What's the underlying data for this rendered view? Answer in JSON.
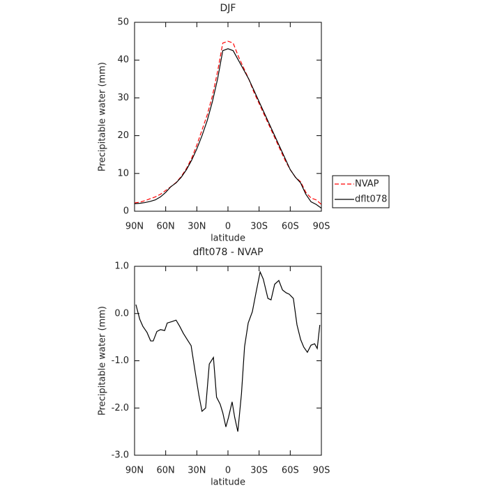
{
  "chart_data": [
    {
      "type": "line",
      "title": "DJF",
      "ylabel": "Precipitable water  (mm)",
      "xlabel": "latitude",
      "x": [
        90,
        85,
        80,
        75,
        70,
        65,
        60,
        55,
        50,
        45,
        40,
        35,
        30,
        25,
        20,
        15,
        10,
        5,
        0,
        -5,
        -10,
        -15,
        -20,
        -25,
        -30,
        -35,
        -40,
        -45,
        -50,
        -55,
        -60,
        -65,
        -70,
        -75,
        -80,
        -85,
        -90
      ],
      "series": [
        {
          "name": "NVAP",
          "color": "#ff0000",
          "dash": true,
          "values": [
            2.2,
            2.4,
            2.8,
            3.3,
            3.8,
            4.5,
            5.5,
            6.5,
            7.6,
            9.2,
            11.3,
            14,
            17.5,
            21.5,
            25.5,
            30.5,
            37,
            44.5,
            45,
            44.5,
            41,
            38,
            35,
            31.5,
            28.5,
            25.5,
            22.5,
            19.5,
            16.5,
            13.5,
            11,
            9,
            7.8,
            5,
            3.5,
            3,
            1.8
          ]
        },
        {
          "name": "dflt078",
          "color": "#000000",
          "dash": false,
          "values": [
            2,
            2.1,
            2.3,
            2.6,
            3,
            3.8,
            5,
            6.5,
            7.5,
            9,
            11,
            13.5,
            16.5,
            20,
            24,
            29,
            35,
            42.5,
            43,
            42.5,
            40,
            37.5,
            35,
            32,
            29,
            26,
            23,
            20,
            17,
            14,
            11,
            9,
            7.5,
            4.5,
            2.5,
            1.8,
            0.8
          ]
        }
      ],
      "xlim": [
        90,
        -90
      ],
      "xticks": [
        {
          "value": 90,
          "label": "90N"
        },
        {
          "value": 60,
          "label": "60N"
        },
        {
          "value": 30,
          "label": "30N"
        },
        0,
        {
          "value": -30,
          "label": "30S"
        },
        {
          "value": -60,
          "label": "60S"
        },
        {
          "value": -90,
          "label": "90S"
        }
      ],
      "ylim": [
        0,
        50
      ],
      "yticks": [
        0,
        10,
        20,
        30,
        40,
        50
      ],
      "legend": "outside-right"
    },
    {
      "type": "line",
      "title": "dflt078 - NVAP",
      "ylabel": "Precipitable water  (mm)",
      "xlabel": "latitude",
      "x": [
        88.7,
        85,
        82,
        78,
        74.5,
        72,
        68.5,
        65,
        61,
        58.5,
        54,
        50,
        46.5,
        43,
        39,
        35.5,
        32,
        28,
        25,
        21.5,
        18,
        14,
        11,
        7.5,
        5,
        2,
        -0.5,
        -4,
        -6.5,
        -9.5,
        -13,
        -16,
        -19.5,
        -23.5,
        -27,
        -31,
        -34,
        -38.5,
        -41.5,
        -45,
        -49,
        -52.5,
        -56,
        -59,
        -63,
        -66.5,
        -70,
        -73,
        -76.5,
        -80,
        -83.5,
        -86,
        -88.5
      ],
      "values": [
        0.19,
        -0.12,
        -0.27,
        -0.4,
        -0.58,
        -0.58,
        -0.38,
        -0.34,
        -0.36,
        -0.2,
        -0.17,
        -0.14,
        -0.27,
        -0.42,
        -0.56,
        -0.68,
        -1.18,
        -1.73,
        -2.07,
        -2,
        -1.07,
        -0.93,
        -1.77,
        -1.92,
        -2.1,
        -2.4,
        -2.2,
        -1.87,
        -2.2,
        -2.5,
        -1.7,
        -0.7,
        -0.2,
        0.04,
        0.44,
        0.88,
        0.73,
        0.32,
        0.29,
        0.62,
        0.7,
        0.5,
        0.44,
        0.41,
        0.32,
        -0.24,
        -0.55,
        -0.71,
        -0.82,
        -0.67,
        -0.64,
        -0.74,
        -0.24
      ],
      "color": "#000000",
      "xlim": [
        90,
        -90
      ],
      "xticks": [
        {
          "value": 90,
          "label": "90N"
        },
        {
          "value": 60,
          "label": "60N"
        },
        {
          "value": 30,
          "label": "30N"
        },
        0,
        {
          "value": -30,
          "label": "30S"
        },
        {
          "value": -60,
          "label": "60S"
        },
        {
          "value": -90,
          "label": "90S"
        }
      ],
      "ylim": [
        -3,
        1
      ],
      "yticks": [
        {
          "value": -3,
          "label": "-3.0"
        },
        {
          "value": -2,
          "label": "-2.0"
        },
        {
          "value": -1,
          "label": "-1.0"
        },
        {
          "value": 0,
          "label": "0.0"
        },
        {
          "value": 1,
          "label": "1.0"
        }
      ]
    }
  ]
}
